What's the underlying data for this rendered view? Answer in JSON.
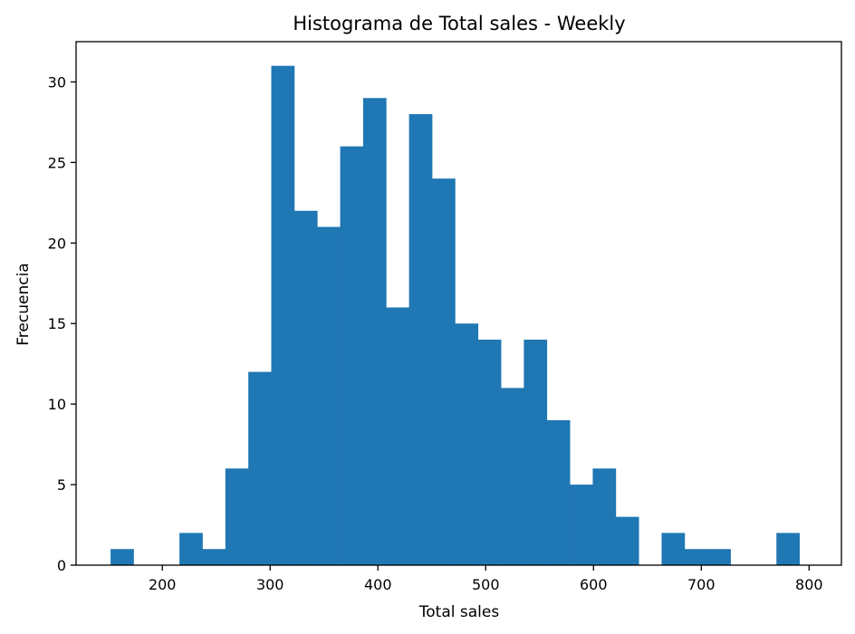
{
  "chart_data": {
    "type": "bar",
    "title": "Histograma de Total sales - Weekly",
    "xlabel": "Total sales",
    "ylabel": "Frecuencia",
    "xlim": [
      120,
      830
    ],
    "ylim": [
      0,
      32.5
    ],
    "xticks": [
      200,
      300,
      400,
      500,
      600,
      700,
      800
    ],
    "yticks": [
      0,
      5,
      10,
      15,
      20,
      25,
      30
    ],
    "bin_start": 152,
    "bin_width": 21.3,
    "values": [
      1,
      0,
      0,
      2,
      1,
      6,
      12,
      31,
      22,
      21,
      26,
      29,
      16,
      28,
      24,
      15,
      14,
      11,
      14,
      9,
      5,
      6,
      3,
      0,
      2,
      1,
      1,
      0,
      0,
      2
    ],
    "bar_color": "#1f77b4",
    "grid": false,
    "legend": "none"
  }
}
